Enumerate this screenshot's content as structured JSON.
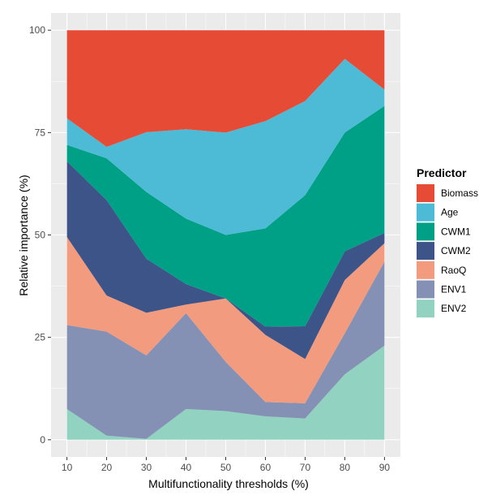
{
  "chart_data": {
    "type": "area",
    "stacked": true,
    "xlabel": "Multifunctionality thresholds (%)",
    "ylabel": "Relative importance (%)",
    "xlim": [
      6,
      94
    ],
    "ylim": [
      -4.2,
      104.2
    ],
    "x_ticks": [
      10,
      20,
      30,
      40,
      50,
      60,
      70,
      80,
      90
    ],
    "y_ticks": [
      0,
      25,
      50,
      75,
      100
    ],
    "grid": true,
    "legend": {
      "title": "Predictor",
      "position": "right"
    },
    "x": [
      10,
      20,
      30,
      40,
      50,
      60,
      70,
      80,
      90
    ],
    "series": [
      {
        "name": "ENV2",
        "color": "#91d2c1",
        "values": [
          7.5,
          1.0,
          0.2,
          7.5,
          7.0,
          5.7,
          5.2,
          16.0,
          23.0
        ]
      },
      {
        "name": "ENV1",
        "color": "#8491b4",
        "values": [
          20.5,
          25.4,
          20.4,
          23.4,
          12.0,
          3.5,
          3.7,
          10.0,
          20.5
        ]
      },
      {
        "name": "RaoQ",
        "color": "#f39b7f",
        "values": [
          21.5,
          8.8,
          10.4,
          2.1,
          15.5,
          16.4,
          10.8,
          13.0,
          4.5
        ]
      },
      {
        "name": "CWM2",
        "color": "#3c5488",
        "values": [
          18.5,
          23.3,
          13.2,
          5.0,
          0.0,
          2.0,
          8.0,
          7.0,
          2.5
        ]
      },
      {
        "name": "CWM1",
        "color": "#00a087",
        "values": [
          4.0,
          10.2,
          16.3,
          16.0,
          15.5,
          24.0,
          32.0,
          29.0,
          31.0
        ]
      },
      {
        "name": "Age",
        "color": "#4dbbd5",
        "values": [
          6.5,
          2.8,
          14.6,
          21.8,
          25.0,
          26.2,
          23.0,
          18.0,
          4.0
        ]
      },
      {
        "name": "Biomass",
        "color": "#e64b35",
        "values": [
          21.5,
          28.5,
          24.9,
          24.2,
          25.0,
          22.2,
          17.3,
          7.0,
          14.5
        ]
      }
    ]
  },
  "colors": {
    "panel_background": "#ebebeb",
    "grid_major": "#ffffff",
    "tick_mark": "#333333",
    "tick_text": "#4d4d4d"
  }
}
